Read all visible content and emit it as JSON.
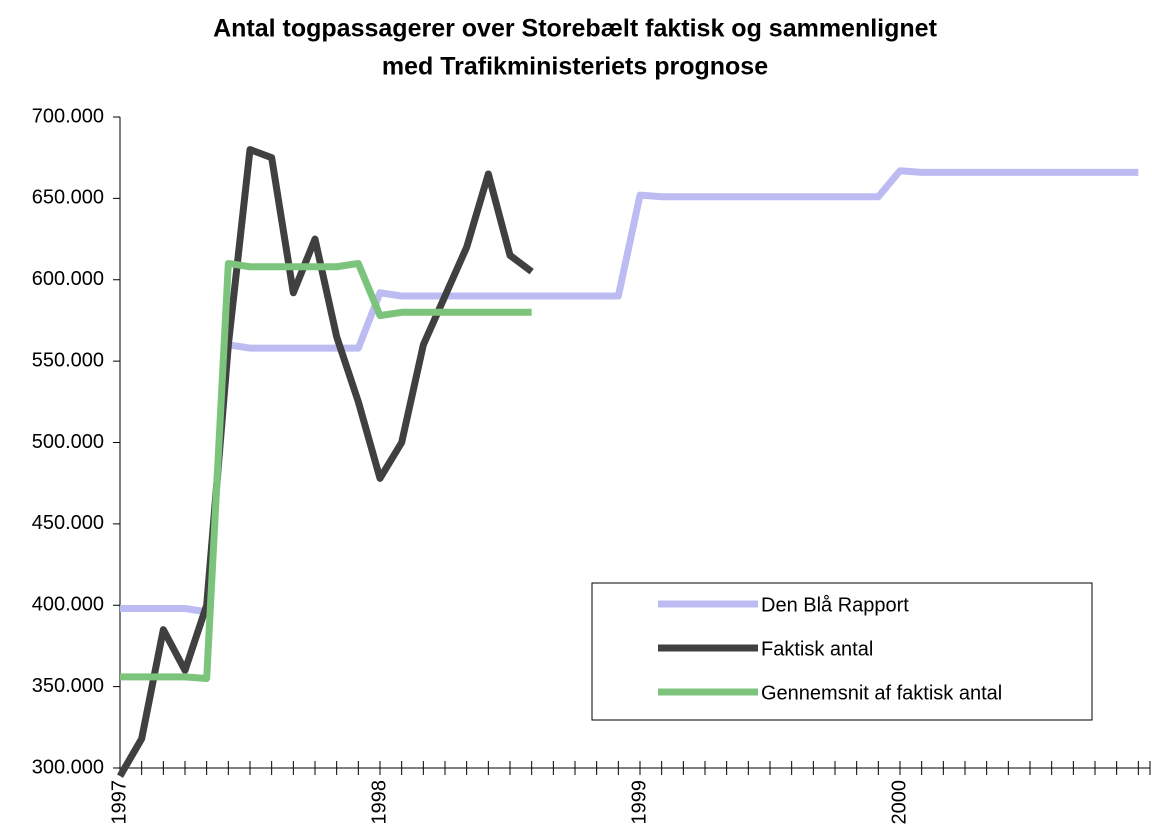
{
  "chart_data": {
    "type": "line",
    "title": [
      "Antal togpassagerer over Storebælt faktisk og sammenlignet",
      "med Trafikministeriets prognose"
    ],
    "categories": [
      "1997",
      null,
      null,
      null,
      null,
      null,
      null,
      null,
      null,
      null,
      null,
      null,
      "1998",
      null,
      null,
      null,
      null,
      null,
      null,
      null,
      null,
      null,
      null,
      null,
      "1999",
      null,
      null,
      null,
      null,
      null,
      null,
      null,
      null,
      null,
      null,
      null,
      "2000",
      null,
      null,
      null,
      null,
      null,
      null,
      null,
      null,
      null,
      null,
      null
    ],
    "ylim": [
      300000,
      700000
    ],
    "yticks": [
      {
        "value": 300000,
        "label": "300.000"
      },
      {
        "value": 350000,
        "label": "350.000"
      },
      {
        "value": 400000,
        "label": "400.000"
      },
      {
        "value": 450000,
        "label": "450.000"
      },
      {
        "value": 500000,
        "label": "500.000"
      },
      {
        "value": 550000,
        "label": "550.000"
      },
      {
        "value": 600000,
        "label": "600.000"
      },
      {
        "value": 650000,
        "label": "650.000"
      },
      {
        "value": 700000,
        "label": "700.000"
      }
    ],
    "series": [
      {
        "name": "Den Blå Rapport",
        "color": "#bcbcf2",
        "values": [
          398000,
          398000,
          398000,
          398000,
          396000,
          560000,
          558000,
          558000,
          558000,
          558000,
          558000,
          558000,
          592000,
          590000,
          590000,
          590000,
          590000,
          590000,
          590000,
          590000,
          590000,
          590000,
          590000,
          590000,
          652000,
          651000,
          651000,
          651000,
          651000,
          651000,
          651000,
          651000,
          651000,
          651000,
          651000,
          651000,
          667000,
          666000,
          666000,
          666000,
          666000,
          666000,
          666000,
          666000,
          666000,
          666000,
          666000,
          666000
        ]
      },
      {
        "name": "Faktisk antal",
        "color": "#404040",
        "values": [
          295000,
          318000,
          385000,
          360000,
          400000,
          560000,
          680000,
          675000,
          592000,
          625000,
          565000,
          525000,
          478000,
          500000,
          560000,
          590000,
          620000,
          665000,
          615000,
          605000,
          null,
          null,
          null,
          null,
          null,
          null,
          null,
          null,
          null,
          null,
          null,
          null,
          null,
          null,
          null,
          null,
          null,
          null,
          null,
          null,
          null,
          null,
          null,
          null,
          null,
          null,
          null,
          null
        ]
      },
      {
        "name": "Gennemsnit af faktisk antal",
        "color": "#7cc47c",
        "values": [
          356000,
          356000,
          356000,
          356000,
          355000,
          610000,
          608000,
          608000,
          608000,
          608000,
          608000,
          610000,
          578000,
          580000,
          580000,
          580000,
          580000,
          580000,
          580000,
          580000,
          null,
          null,
          null,
          null,
          null,
          null,
          null,
          null,
          null,
          null,
          null,
          null,
          null,
          null,
          null,
          null,
          null,
          null,
          null,
          null,
          null,
          null,
          null,
          null,
          null,
          null,
          null,
          null
        ]
      }
    ]
  }
}
